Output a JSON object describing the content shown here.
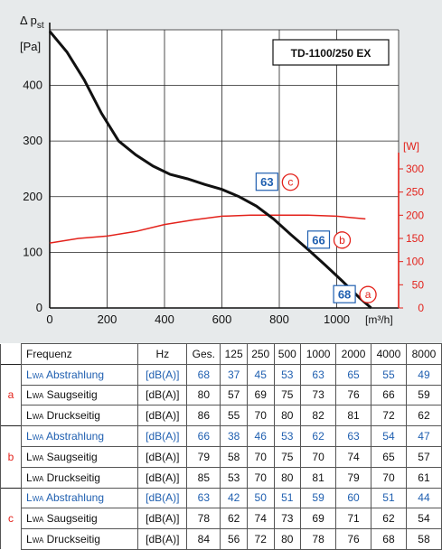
{
  "chart_data": {
    "type": "line",
    "model_label": "TD-1100/250 EX",
    "xlabel": "[m³/h]",
    "ylabel_symbol": "Δ p",
    "ylabel_sub": "st",
    "ylabel_unit": "[Pa]",
    "y2label": "[W]",
    "xlim": [
      0,
      1150
    ],
    "ylim": [
      0,
      500
    ],
    "y2lim": [
      0,
      400
    ],
    "x_ticks": [
      0,
      200,
      400,
      600,
      800,
      1000
    ],
    "y_ticks": [
      0,
      100,
      200,
      300,
      400
    ],
    "y2_ticks": [
      0,
      50,
      100,
      150,
      200,
      250,
      300
    ],
    "grid": true,
    "colors": {
      "pressure": "#111111",
      "power": "#e3221b",
      "table_blue": "#1f5fb0",
      "background": "#e7eaeb"
    },
    "series": [
      {
        "axis": "left",
        "x": [
          0,
          60,
          120,
          180,
          240,
          300,
          360,
          420,
          480,
          540,
          600,
          660,
          720,
          780,
          840,
          900,
          960,
          1020,
          1080,
          1120
        ],
        "values": [
          497,
          460,
          410,
          350,
          300,
          275,
          255,
          240,
          232,
          222,
          213,
          200,
          183,
          160,
          132,
          105,
          77,
          48,
          18,
          0
        ]
      },
      {
        "axis": "right",
        "x": [
          0,
          100,
          200,
          300,
          400,
          500,
          600,
          700,
          800,
          900,
          1000,
          1100
        ],
        "values": [
          140,
          150,
          155,
          165,
          180,
          190,
          198,
          200,
          200,
          200,
          198,
          192
        ]
      }
    ],
    "operating_points": [
      {
        "noise": "63",
        "letter": "c",
        "x": 820,
        "y": 226
      },
      {
        "noise": "66",
        "letter": "b",
        "x": 1000,
        "y": 122
      },
      {
        "noise": "68",
        "letter": "a",
        "x": 1090,
        "y": 24
      }
    ]
  },
  "table": {
    "header": [
      "Frequenz",
      "Hz",
      "Ges.",
      "125",
      "250",
      "500",
      "1000",
      "2000",
      "4000",
      "8000"
    ],
    "groups": [
      {
        "letter": "a",
        "rows": [
          {
            "label": "Abstrahlung",
            "unit": "[dB(A)]",
            "values": [
              "68",
              "37",
              "45",
              "53",
              "63",
              "65",
              "55",
              "49"
            ]
          },
          {
            "label": "Saugseitig",
            "unit": "[dB(A)]",
            "values": [
              "80",
              "57",
              "69",
              "75",
              "73",
              "76",
              "66",
              "59"
            ]
          },
          {
            "label": "Druckseitig",
            "unit": "[dB(A)]",
            "values": [
              "86",
              "55",
              "70",
              "80",
              "82",
              "81",
              "72",
              "62"
            ]
          }
        ]
      },
      {
        "letter": "b",
        "rows": [
          {
            "label": "Abstrahlung",
            "unit": "[dB(A)]",
            "values": [
              "66",
              "38",
              "46",
              "53",
              "62",
              "63",
              "54",
              "47"
            ]
          },
          {
            "label": "Saugseitig",
            "unit": "[dB(A)]",
            "values": [
              "79",
              "58",
              "70",
              "75",
              "70",
              "74",
              "65",
              "57"
            ]
          },
          {
            "label": "Druckseitig",
            "unit": "[dB(A)]",
            "values": [
              "85",
              "53",
              "70",
              "80",
              "81",
              "79",
              "70",
              "61"
            ]
          }
        ]
      },
      {
        "letter": "c",
        "rows": [
          {
            "label": "Abstrahlung",
            "unit": "[dB(A)]",
            "values": [
              "63",
              "42",
              "50",
              "51",
              "59",
              "60",
              "51",
              "44"
            ]
          },
          {
            "label": "Saugseitig",
            "unit": "[dB(A)]",
            "values": [
              "78",
              "62",
              "74",
              "73",
              "69",
              "71",
              "62",
              "54"
            ]
          },
          {
            "label": "Druckseitig",
            "unit": "[dB(A)]",
            "values": [
              "84",
              "56",
              "72",
              "80",
              "78",
              "76",
              "68",
              "58"
            ]
          }
        ]
      }
    ],
    "lwa_prefix": "L",
    "lwa_sub": "WA"
  }
}
